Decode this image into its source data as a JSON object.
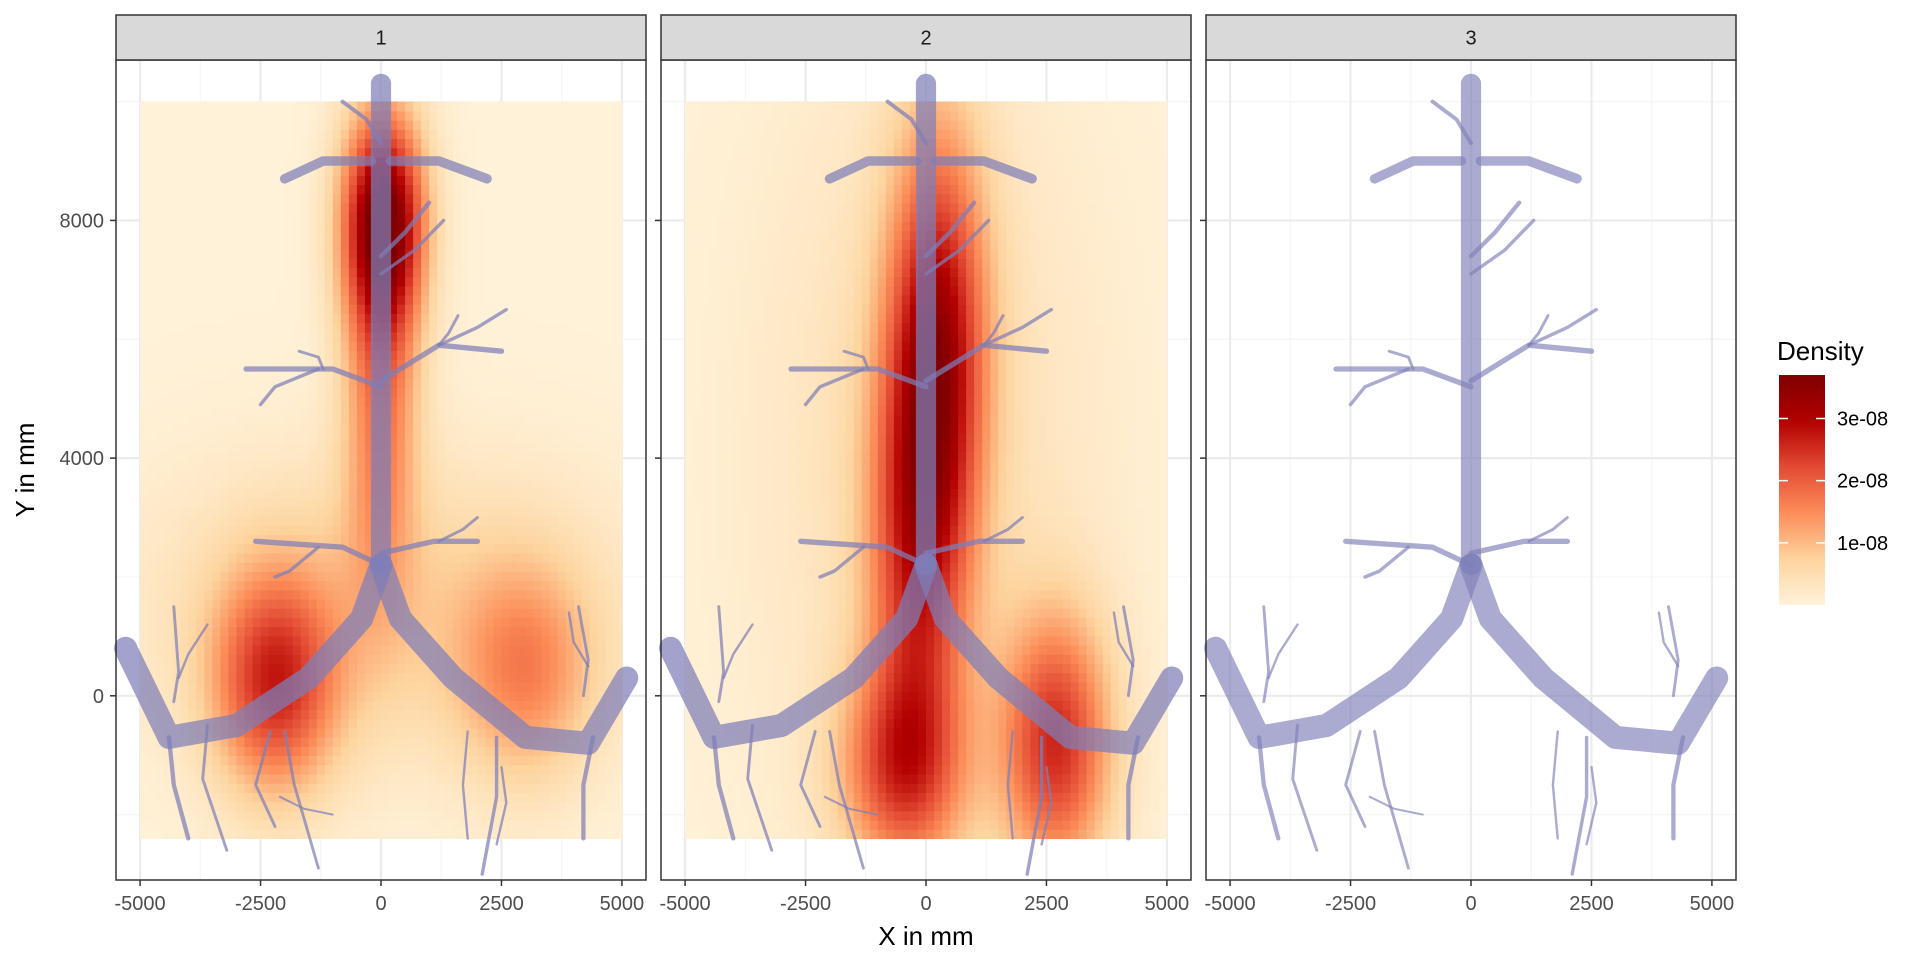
{
  "chart_data": {
    "type": "heatmap",
    "title": "",
    "xlabel": "X in mm",
    "ylabel": "Y in mm",
    "xlim": [
      -5500,
      5500
    ],
    "ylim": [
      -3100,
      10700
    ],
    "x_ticks": [
      -5000,
      -2500,
      0,
      2500,
      5000
    ],
    "x_tick_labels": [
      "-5000",
      "-2500",
      "0",
      "2500",
      "5000"
    ],
    "y_ticks": [
      0,
      4000,
      8000
    ],
    "y_tick_labels": [
      "0",
      "4000",
      "8000"
    ],
    "grid": true,
    "density_extent": {
      "x": [
        -5000,
        5000
      ],
      "y": [
        -2400,
        10000
      ]
    },
    "facets": [
      {
        "label": "1",
        "has_density": true,
        "peaks": [
          {
            "x": 50,
            "y": 8000,
            "sx": 600,
            "sy": 1300,
            "density": 3.6e-08
          },
          {
            "x": 0,
            "y": 5000,
            "sx": 550,
            "sy": 2200,
            "density": 1.6e-08
          },
          {
            "x": -2200,
            "y": 200,
            "sx": 900,
            "sy": 1300,
            "density": 2.3e-08
          },
          {
            "x": 3000,
            "y": 400,
            "sx": 1000,
            "sy": 1300,
            "density": 1.3e-08
          },
          {
            "x": 0,
            "y": 1500,
            "sx": 3500,
            "sy": 1800,
            "density": 7e-09
          }
        ]
      },
      {
        "label": "2",
        "has_density": true,
        "peaks": [
          {
            "x": 250,
            "y": 6000,
            "sx": 700,
            "sy": 2500,
            "density": 2.6e-08
          },
          {
            "x": -200,
            "y": 2500,
            "sx": 700,
            "sy": 2500,
            "density": 2e-08
          },
          {
            "x": -500,
            "y": -1200,
            "sx": 900,
            "sy": 1200,
            "density": 2e-08
          },
          {
            "x": 2700,
            "y": -800,
            "sx": 800,
            "sy": 1500,
            "density": 2.4e-08
          },
          {
            "x": 0,
            "y": 4000,
            "sx": 2500,
            "sy": 5000,
            "density": 5e-09
          }
        ]
      },
      {
        "label": "3",
        "has_density": false,
        "peaks": []
      }
    ],
    "legend": {
      "title": "Density",
      "position": "right",
      "breaks": [
        1e-08,
        2e-08,
        3e-08
      ],
      "labels": [
        "1e-08",
        "2e-08",
        "3e-08"
      ],
      "limits": [
        0,
        3.7e-08
      ],
      "colors": [
        "#fff2d9",
        "#fdd49e",
        "#fc8d59",
        "#e34a33",
        "#b30000",
        "#7f0000"
      ]
    }
  },
  "colors": {
    "strip_background": "#d9d9d9",
    "grid_major": "#ebebeb",
    "grid_minor": "#f5f5f5",
    "vessel": "#7e7eb8"
  }
}
